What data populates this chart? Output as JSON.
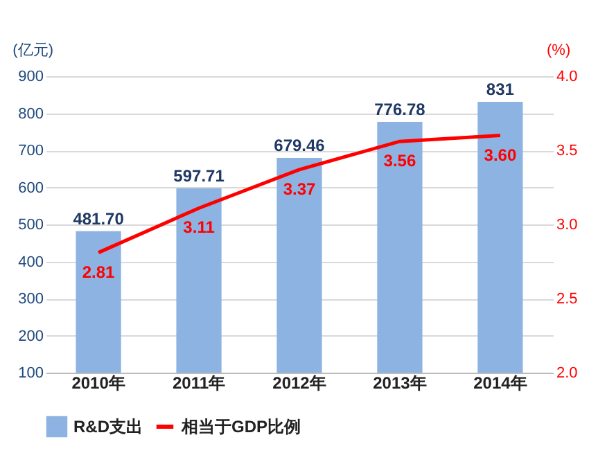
{
  "chart_data": {
    "type": "bar",
    "categories": [
      "2010年",
      "2011年",
      "2012年",
      "2013年",
      "2014年"
    ],
    "ylabel": "(亿元)",
    "y2label": "(%)",
    "series": [
      {
        "name": "R&D支出",
        "type": "bar",
        "color": "#8db3e2",
        "values": [
          481.7,
          597.71,
          679.46,
          776.78,
          831
        ],
        "value_labels": [
          "481.70",
          "597.71",
          "679.46",
          "776.78",
          "831"
        ]
      },
      {
        "name": "相当于GDP比例",
        "type": "line",
        "axis": "y2",
        "color": "#ff0000",
        "values": [
          2.81,
          3.11,
          3.37,
          3.56,
          3.6
        ],
        "value_labels": [
          "2.81",
          "3.11",
          "3.37",
          "3.56",
          "3.60"
        ]
      }
    ],
    "ylim": [
      100,
      900
    ],
    "yticks": [
      100,
      200,
      300,
      400,
      500,
      600,
      700,
      800,
      900
    ],
    "y2lim": [
      2,
      4
    ],
    "y2ticks": [
      {
        "value": 2,
        "label": "2.0"
      },
      {
        "value": 2.5,
        "label": "2.5"
      },
      {
        "value": 3,
        "label": "3.0"
      },
      {
        "value": 3.5,
        "label": "3.5"
      },
      {
        "value": 4,
        "label": "4.0"
      }
    ],
    "grid": "y",
    "legend": "bottom",
    "marker": "none",
    "line_style": "solid"
  }
}
